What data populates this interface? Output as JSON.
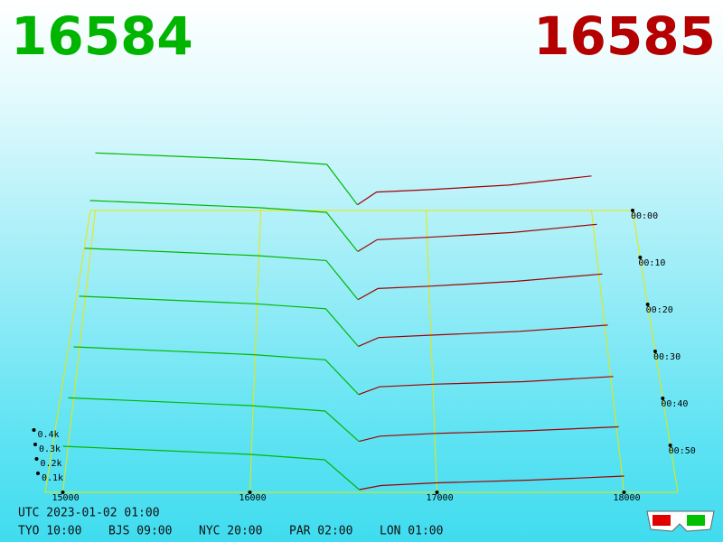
{
  "header": {
    "bid": "16584",
    "ask": "16585"
  },
  "axes": {
    "price_ticks": [
      {
        "value": 15000,
        "label": "15000"
      },
      {
        "value": 16000,
        "label": "16000"
      },
      {
        "value": 17000,
        "label": "17000"
      },
      {
        "value": 18000,
        "label": "18000"
      }
    ],
    "volume_ticks": [
      {
        "value": 0.1,
        "label": "0.1k"
      },
      {
        "value": 0.2,
        "label": "0.2k"
      },
      {
        "value": 0.3,
        "label": "0.3k"
      },
      {
        "value": 0.4,
        "label": "0.4k"
      }
    ],
    "time_ticks": [
      {
        "value": 0,
        "label": "00:00"
      },
      {
        "value": 10,
        "label": "00:10"
      },
      {
        "value": 20,
        "label": "00:20"
      },
      {
        "value": 30,
        "label": "00:30"
      },
      {
        "value": 40,
        "label": "00:40"
      },
      {
        "value": 50,
        "label": "00:50"
      }
    ]
  },
  "depth": {
    "bid_color": "#00b800",
    "ask_color": "#a00000",
    "bid_prices": [
      15000,
      15500,
      16000,
      16400,
      16584
    ],
    "ask_prices": [
      16585,
      16700,
      17000,
      17500,
      18000
    ],
    "snapshots": [
      {
        "minute": 0,
        "bid": [
          0.5,
          0.47,
          0.44,
          0.4,
          0.05
        ],
        "ask": [
          0.05,
          0.16,
          0.18,
          0.22,
          0.3
        ]
      },
      {
        "minute": 10,
        "bid": [
          0.48,
          0.45,
          0.42,
          0.38,
          0.05
        ],
        "ask": [
          0.05,
          0.15,
          0.17,
          0.21,
          0.28
        ]
      },
      {
        "minute": 20,
        "bid": [
          0.46,
          0.43,
          0.4,
          0.36,
          0.04
        ],
        "ask": [
          0.04,
          0.13,
          0.15,
          0.19,
          0.25
        ]
      },
      {
        "minute": 30,
        "bid": [
          0.44,
          0.41,
          0.38,
          0.34,
          0.04
        ],
        "ask": [
          0.04,
          0.11,
          0.13,
          0.16,
          0.21
        ]
      },
      {
        "minute": 40,
        "bid": [
          0.4,
          0.37,
          0.34,
          0.3,
          0.03
        ],
        "ask": [
          0.03,
          0.09,
          0.11,
          0.13,
          0.17
        ]
      },
      {
        "minute": 50,
        "bid": [
          0.36,
          0.33,
          0.3,
          0.26,
          0.03
        ],
        "ask": [
          0.03,
          0.07,
          0.09,
          0.11,
          0.14
        ]
      },
      {
        "minute": 60,
        "bid": [
          0.34,
          0.31,
          0.28,
          0.24,
          0.02
        ],
        "ask": [
          0.02,
          0.05,
          0.07,
          0.09,
          0.12
        ]
      }
    ]
  },
  "footer": {
    "utc": "UTC 2023-01-02 01:00",
    "zones": [
      "TYO 10:00",
      "BJS 09:00",
      "NYC 20:00",
      "PAR 02:00",
      "LON 01:00"
    ]
  }
}
